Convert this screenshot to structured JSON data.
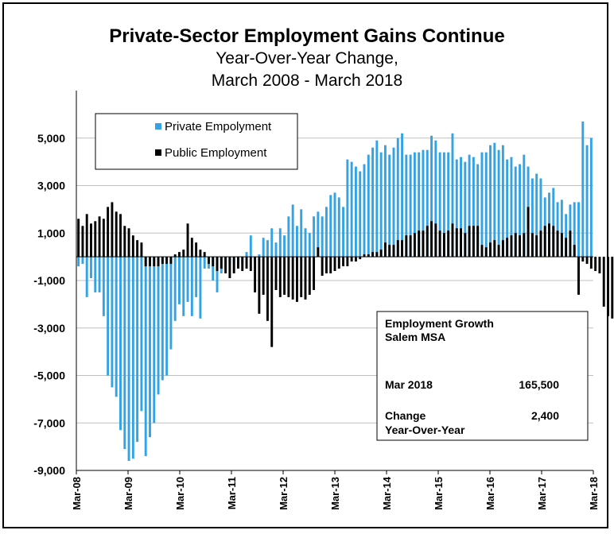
{
  "chart_data": {
    "type": "bar",
    "title": "Private-Sector Employment Gains Continue",
    "subtitle_lines": [
      "Year-Over-Year Change,",
      "March 2008 - March 2018"
    ],
    "ylim": [
      -9000,
      7000
    ],
    "y_ticks": [
      "5,000",
      "3,000",
      "1,000",
      "-1,000",
      "-3,000",
      "-5,000",
      "-7,000",
      "-9,000"
    ],
    "y_tick_values": [
      5000,
      3000,
      1000,
      -1000,
      -3000,
      -5000,
      -7000,
      -9000
    ],
    "x_ticks": [
      "Mar-08",
      "Mar-09",
      "Mar-10",
      "Mar-11",
      "Mar-12",
      "Mar-13",
      "Mar-14",
      "Mar-15",
      "Mar-16",
      "Mar-17",
      "Mar-18"
    ],
    "grid": true,
    "legend_position": "top-left",
    "colors": {
      "private": "#33A3E6",
      "public": "#000000"
    },
    "series": [
      {
        "name": "Private Empolyment",
        "values": [
          -400,
          -300,
          -1700,
          -900,
          -1500,
          -1500,
          -2500,
          -5000,
          -5500,
          -5900,
          -7300,
          -8100,
          -8600,
          -8500,
          -7800,
          -6500,
          -8400,
          -7600,
          -7000,
          -5800,
          -5200,
          -5000,
          -3900,
          -2700,
          -2000,
          -2500,
          -1900,
          -2500,
          -1700,
          -2600,
          -500,
          -500,
          -1000,
          -1500,
          -700,
          -500,
          -300,
          -200,
          -300,
          -300,
          200,
          900,
          -200,
          100,
          800,
          700,
          1200,
          600,
          1200,
          900,
          1700,
          2200,
          1300,
          2000,
          1200,
          1000,
          1700,
          1900,
          1700,
          2100,
          2600,
          2700,
          2500,
          2100,
          4100,
          4000,
          3800,
          3600,
          3900,
          4300,
          4600,
          4900,
          4400,
          4700,
          4300,
          4600,
          5000,
          5200,
          4300,
          4300,
          4400,
          4400,
          4500,
          4500,
          5100,
          4900,
          4400,
          4400,
          4400,
          5200,
          4100,
          4200,
          4000,
          4300,
          4200,
          3900,
          4400,
          4400,
          4700,
          4800,
          4500,
          4700,
          4100,
          4200,
          3800,
          3900,
          4300,
          3800,
          3300,
          3500,
          3300,
          2500,
          2700,
          2900,
          2300,
          2400,
          1800,
          2200,
          2300,
          2300,
          5700,
          4700,
          5000
        ]
      },
      {
        "name": "Public Employment",
        "values": [
          1600,
          1300,
          1800,
          1400,
          1500,
          1700,
          1600,
          2100,
          2300,
          1900,
          1800,
          1300,
          1200,
          900,
          700,
          600,
          -400,
          -400,
          -400,
          -400,
          -300,
          -300,
          -300,
          100,
          200,
          300,
          1400,
          800,
          600,
          300,
          200,
          -300,
          -400,
          -600,
          -500,
          -700,
          -900,
          -700,
          -500,
          -600,
          -500,
          -600,
          -1500,
          -2400,
          -1600,
          -2700,
          -3800,
          -1400,
          -1700,
          -1600,
          -1700,
          -1800,
          -1900,
          -1700,
          -1800,
          -1600,
          -1400,
          400,
          -800,
          -700,
          -700,
          -600,
          -500,
          -400,
          -400,
          -200,
          -200,
          -100,
          100,
          100,
          200,
          200,
          300,
          600,
          500,
          500,
          700,
          700,
          900,
          900,
          1000,
          1100,
          1100,
          1300,
          1500,
          1400,
          1100,
          1000,
          1100,
          1400,
          1200,
          1200,
          1000,
          1300,
          1300,
          1300,
          500,
          400,
          600,
          700,
          500,
          700,
          800,
          900,
          1000,
          900,
          1000,
          2100,
          1000,
          900,
          1100,
          1300,
          1400,
          1300,
          1100,
          1000,
          800,
          1100,
          500,
          -1600,
          -200,
          -300,
          -500,
          -600,
          -700,
          -2100,
          -2500,
          -2600
        ]
      }
    ]
  },
  "info_box": {
    "heading_line1": "Employment Growth",
    "heading_line2": "Salem MSA",
    "row1_label": "Mar 2018",
    "row1_value": "165,500",
    "row2_label_line1": "Change",
    "row2_label_line2": "Year-Over-Year",
    "row2_value": "2,400"
  }
}
